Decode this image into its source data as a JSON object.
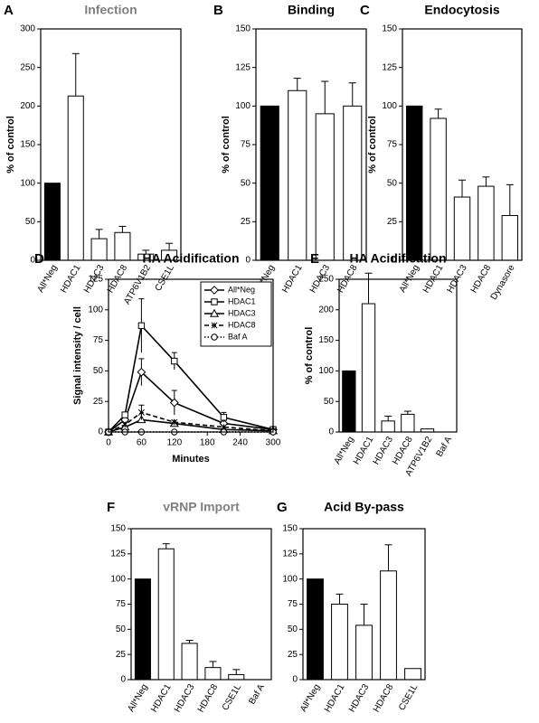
{
  "chart_data": [
    {
      "type": "bar",
      "panel": "A",
      "title": "Infection",
      "title_color": "#808080",
      "ylabel": "% of control",
      "categories": [
        "All*Neg",
        "HDAC1",
        "HDAC3",
        "HDAC8",
        "ATP6V1B2",
        "CSE1L"
      ],
      "values": [
        100,
        213,
        28,
        36,
        8,
        13
      ],
      "errors": [
        null,
        55,
        12,
        8,
        5,
        9
      ],
      "bar_colors": [
        "#000000",
        "#ffffff",
        "#ffffff",
        "#ffffff",
        "#ffffff",
        "#ffffff"
      ],
      "ylim": [
        0,
        300
      ],
      "yticks": [
        0,
        50,
        100,
        150,
        200,
        250,
        300
      ]
    },
    {
      "type": "bar",
      "panel": "B",
      "title": "Binding",
      "title_color": "#000000",
      "ylabel": "% of control",
      "categories": [
        "All*Neg",
        "HDAC1",
        "HDAC3",
        "HDAC8"
      ],
      "values": [
        100,
        110,
        95,
        100
      ],
      "errors": [
        null,
        8,
        21,
        15
      ],
      "bar_colors": [
        "#000000",
        "#ffffff",
        "#ffffff",
        "#ffffff"
      ],
      "ylim": [
        0,
        150
      ],
      "yticks": [
        0,
        25,
        50,
        75,
        100,
        125,
        150
      ]
    },
    {
      "type": "bar",
      "panel": "C",
      "title": "Endocytosis",
      "title_color": "#000000",
      "ylabel": "% of control",
      "categories": [
        "All*Neg",
        "HDAC1",
        "HDAC3",
        "HDAC8",
        "Dynasore"
      ],
      "values": [
        100,
        92,
        41,
        48,
        29
      ],
      "errors": [
        null,
        6,
        11,
        6,
        20
      ],
      "bar_colors": [
        "#000000",
        "#ffffff",
        "#ffffff",
        "#ffffff",
        "#ffffff"
      ],
      "ylim": [
        0,
        150
      ],
      "yticks": [
        0,
        25,
        50,
        75,
        100,
        125,
        150
      ]
    },
    {
      "type": "line",
      "panel": "D",
      "title": "HA Acidification",
      "title_color": "#000000",
      "ylabel": "Signal intensity / cell",
      "xlabel": "Minutes",
      "x": [
        0,
        30,
        60,
        120,
        210,
        300
      ],
      "series": [
        {
          "name": "All*Neg",
          "color": "#000000",
          "marker": "diamond",
          "dash": "solid",
          "values": [
            0,
            10,
            49,
            24,
            7,
            2
          ],
          "errors": [
            null,
            null,
            11,
            10,
            null,
            null
          ]
        },
        {
          "name": "HDAC1",
          "color": "#000000",
          "marker": "square",
          "dash": "solid",
          "values": [
            0,
            14,
            87,
            58,
            12,
            2
          ],
          "errors": [
            null,
            null,
            22,
            7,
            4,
            null
          ]
        },
        {
          "name": "HDAC3",
          "color": "#000000",
          "marker": "triangle",
          "dash": "solid",
          "values": [
            0,
            4,
            10,
            7,
            2,
            1
          ],
          "errors": [
            null,
            null,
            null,
            null,
            null,
            null
          ]
        },
        {
          "name": "HDAC8",
          "color": "#000000",
          "marker": "asterisk",
          "dash": "dashed",
          "values": [
            0,
            6,
            16,
            8,
            4,
            1
          ],
          "errors": [
            null,
            null,
            6,
            null,
            null,
            null
          ]
        },
        {
          "name": "Baf A",
          "color": "#000000",
          "marker": "circle",
          "dash": "dotted",
          "values": [
            0,
            0,
            0,
            0,
            0,
            0
          ],
          "errors": [
            null,
            null,
            null,
            null,
            null,
            null
          ]
        }
      ],
      "xlim": [
        0,
        300
      ],
      "xticks": [
        0,
        60,
        120,
        180,
        240,
        300
      ],
      "ylim": [
        0,
        125
      ],
      "yticks": [
        0,
        25,
        50,
        75,
        100,
        125
      ],
      "legend": "upper right"
    },
    {
      "type": "bar",
      "panel": "E",
      "title": "HA Acidification",
      "title_color": "#000000",
      "ylabel": "% of control",
      "categories": [
        "All*Neg",
        "HDAC1",
        "HDAC3",
        "HDAC8",
        "ATP6V1B2",
        "Baf A"
      ],
      "values": [
        100,
        210,
        18,
        29,
        5,
        0
      ],
      "errors": [
        null,
        50,
        8,
        5,
        null,
        null
      ],
      "bar_colors": [
        "#000000",
        "#ffffff",
        "#ffffff",
        "#ffffff",
        "#ffffff",
        "#ffffff"
      ],
      "ylim": [
        0,
        250
      ],
      "yticks": [
        0,
        50,
        100,
        150,
        200,
        250
      ]
    },
    {
      "type": "bar",
      "panel": "F",
      "title": "vRNP Import",
      "title_color": "#808080",
      "categories": [
        "All*Neg",
        "HDAC1",
        "HDAC3",
        "HDAC8",
        "CSE1L",
        "Baf A"
      ],
      "values": [
        100,
        130,
        36,
        12,
        5,
        0
      ],
      "errors": [
        null,
        5,
        3,
        6,
        5,
        null
      ],
      "bar_colors": [
        "#000000",
        "#ffffff",
        "#ffffff",
        "#ffffff",
        "#ffffff",
        "#ffffff"
      ],
      "ylim": [
        0,
        150
      ],
      "yticks": [
        0,
        25,
        50,
        75,
        100,
        125,
        150
      ]
    },
    {
      "type": "bar",
      "panel": "G",
      "title": "Acid By-pass",
      "title_color": "#000000",
      "categories": [
        "All*Neg",
        "HDAC1",
        "HDAC3",
        "HDAC8",
        "CSE1L"
      ],
      "values": [
        100,
        75,
        54,
        108,
        11
      ],
      "errors": [
        null,
        10,
        21,
        26,
        null
      ],
      "bar_colors": [
        "#000000",
        "#ffffff",
        "#ffffff",
        "#ffffff",
        "#ffffff"
      ],
      "ylim": [
        0,
        150
      ],
      "yticks": [
        0,
        25,
        50,
        75,
        100,
        125,
        150
      ]
    }
  ]
}
